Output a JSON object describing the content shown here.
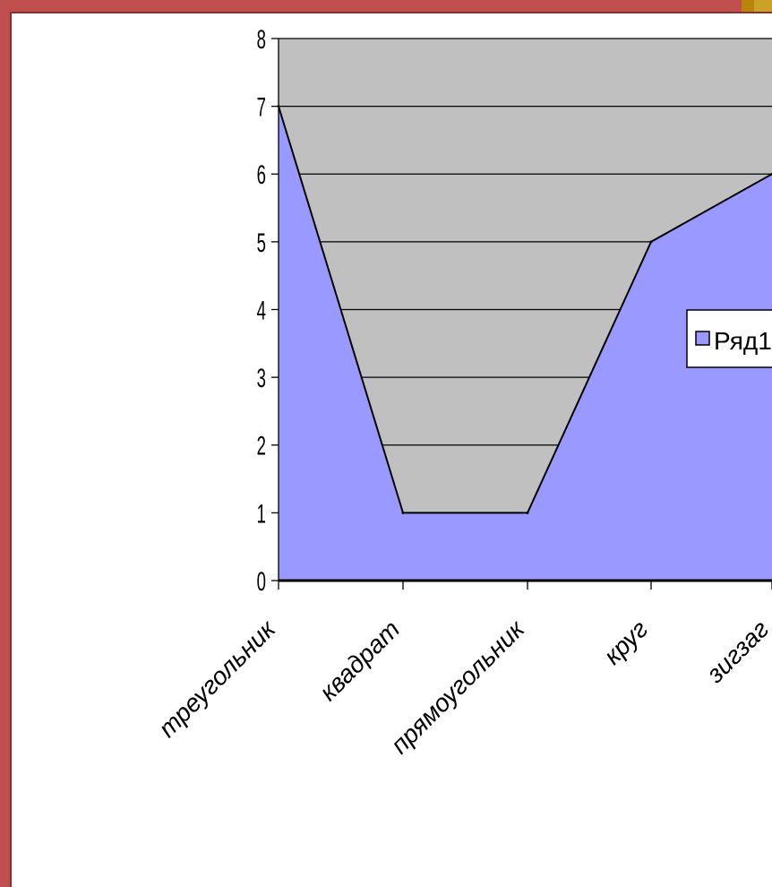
{
  "colors": {
    "frame": "#c0504d",
    "plot_background": "#c0c0c0",
    "series_fill": "#9999ff",
    "gridline": "#000000"
  },
  "chart_data": {
    "type": "area",
    "categories": [
      "треугольник",
      "квадрат",
      "прямоугольник",
      "круг",
      "зигзаг"
    ],
    "series": [
      {
        "name": "Ряд1",
        "values": [
          7,
          1,
          1,
          5,
          6
        ]
      }
    ],
    "ylim": [
      0,
      8
    ],
    "yticks": [
      "0",
      "1",
      "2",
      "3",
      "4",
      "5",
      "6",
      "7",
      "8"
    ],
    "grid": true,
    "legend_position": "right"
  }
}
